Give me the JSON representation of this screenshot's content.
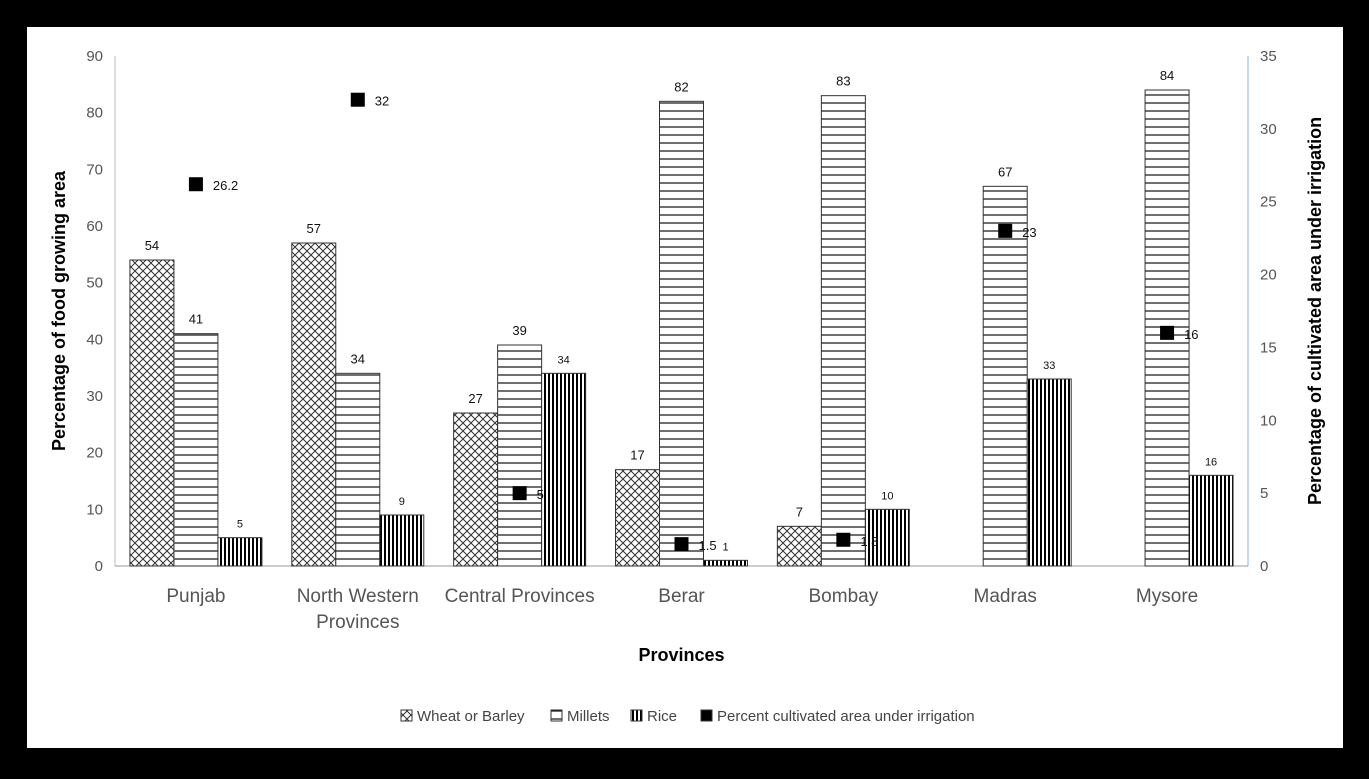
{
  "chart_data": {
    "type": "bar",
    "title": "",
    "xlabel": "Provinces",
    "ylabel": "Percentage of food growing area",
    "y2label": "Percentage of cultivated area under irrigation",
    "ylim": [
      0,
      90
    ],
    "y2lim": [
      0,
      35
    ],
    "yticks": [
      "0",
      "10",
      "20",
      "30",
      "40",
      "50",
      "60",
      "70",
      "80",
      "90"
    ],
    "y2ticks": [
      "0",
      "5",
      "10",
      "15",
      "20",
      "25",
      "30",
      "35"
    ],
    "categories": [
      "Punjab",
      "North Western Provinces",
      "Central Provinces",
      "Berar",
      "Bombay",
      "Madras",
      "Mysore"
    ],
    "category_lines": [
      [
        "Punjab"
      ],
      [
        "North Western",
        "Provinces"
      ],
      [
        "Central Provinces"
      ],
      [
        "Berar"
      ],
      [
        "Bombay"
      ],
      [
        "Madras"
      ],
      [
        "Mysore"
      ]
    ],
    "series": [
      {
        "name": "Wheat or Barley",
        "type": "bar",
        "pattern": "crosshatch",
        "axis": "left",
        "values": [
          54,
          57,
          27,
          17,
          7,
          null,
          null
        ]
      },
      {
        "name": "Millets",
        "type": "bar",
        "pattern": "horizontal",
        "axis": "left",
        "values": [
          41,
          34,
          39,
          82,
          83,
          67,
          84
        ]
      },
      {
        "name": "Rice",
        "type": "bar",
        "pattern": "vertical",
        "axis": "left",
        "values": [
          5,
          9,
          34,
          1,
          10,
          33,
          16
        ]
      },
      {
        "name": "Percent cultivated area under irrigation",
        "type": "scatter",
        "marker": "square",
        "axis": "right",
        "values": [
          26.2,
          32,
          5,
          1.5,
          1.8,
          23,
          16
        ]
      }
    ],
    "legend_position": "bottom",
    "grid": false
  }
}
